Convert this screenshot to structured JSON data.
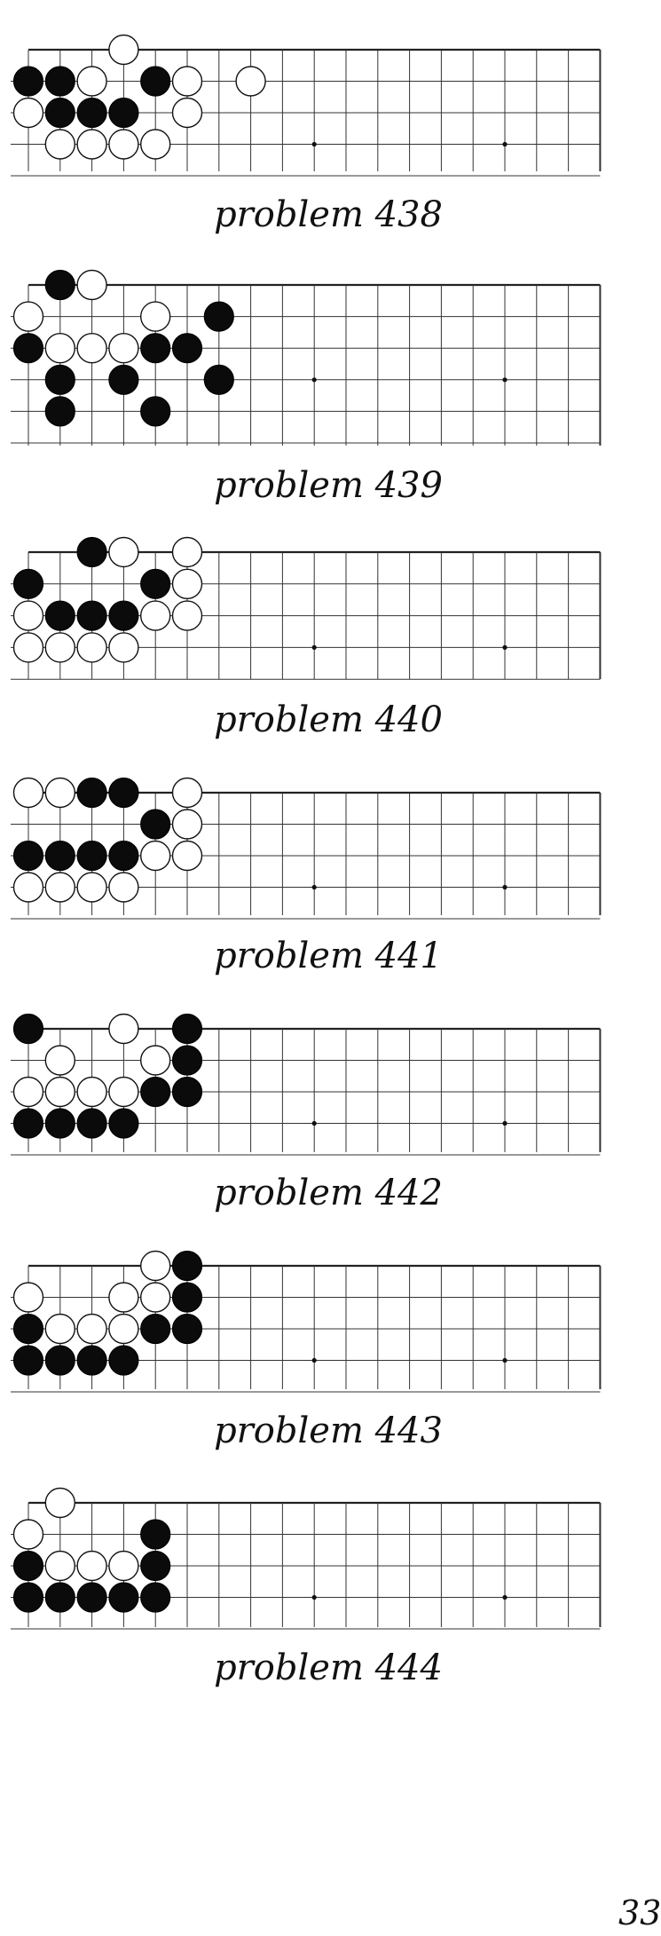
{
  "problems": [
    {
      "caption": "problem 438",
      "black": [
        [
          0,
          1
        ],
        [
          1,
          1
        ],
        [
          4,
          1
        ],
        [
          1,
          2
        ],
        [
          2,
          2
        ],
        [
          3,
          2
        ]
      ],
      "white": [
        [
          3,
          0
        ],
        [
          2,
          1
        ],
        [
          5,
          1
        ],
        [
          7,
          1
        ],
        [
          0,
          2
        ],
        [
          5,
          2
        ],
        [
          1,
          3
        ],
        [
          2,
          3
        ],
        [
          3,
          3
        ],
        [
          4,
          3
        ]
      ]
    },
    {
      "caption": "problem 439",
      "black": [
        [
          1,
          0
        ],
        [
          6,
          1
        ],
        [
          0,
          2
        ],
        [
          4,
          2
        ],
        [
          5,
          2
        ],
        [
          1,
          3
        ],
        [
          3,
          3
        ],
        [
          6,
          3
        ],
        [
          1,
          4
        ],
        [
          4,
          4
        ]
      ],
      "white": [
        [
          2,
          0
        ],
        [
          0,
          1
        ],
        [
          4,
          1
        ],
        [
          1,
          2
        ],
        [
          2,
          2
        ],
        [
          3,
          2
        ]
      ]
    },
    {
      "caption": "problem 440",
      "black": [
        [
          2,
          0
        ],
        [
          0,
          1
        ],
        [
          4,
          1
        ],
        [
          1,
          2
        ],
        [
          2,
          2
        ],
        [
          3,
          2
        ]
      ],
      "white": [
        [
          3,
          0
        ],
        [
          5,
          0
        ],
        [
          5,
          1
        ],
        [
          0,
          2
        ],
        [
          4,
          2
        ],
        [
          5,
          2
        ],
        [
          0,
          3
        ],
        [
          1,
          3
        ],
        [
          2,
          3
        ],
        [
          3,
          3
        ]
      ]
    },
    {
      "caption": "problem 441",
      "black": [
        [
          2,
          0
        ],
        [
          3,
          0
        ],
        [
          4,
          1
        ],
        [
          0,
          2
        ],
        [
          1,
          2
        ],
        [
          2,
          2
        ],
        [
          3,
          2
        ]
      ],
      "white": [
        [
          0,
          0
        ],
        [
          1,
          0
        ],
        [
          5,
          0
        ],
        [
          5,
          1
        ],
        [
          4,
          2
        ],
        [
          5,
          2
        ],
        [
          0,
          3
        ],
        [
          1,
          3
        ],
        [
          2,
          3
        ],
        [
          3,
          3
        ]
      ]
    },
    {
      "caption": "problem 442",
      "black": [
        [
          0,
          0
        ],
        [
          5,
          0
        ],
        [
          5,
          1
        ],
        [
          4,
          2
        ],
        [
          5,
          2
        ],
        [
          0,
          3
        ],
        [
          1,
          3
        ],
        [
          2,
          3
        ],
        [
          3,
          3
        ]
      ],
      "white": [
        [
          3,
          0
        ],
        [
          1,
          1
        ],
        [
          4,
          1
        ],
        [
          0,
          2
        ],
        [
          1,
          2
        ],
        [
          2,
          2
        ],
        [
          3,
          2
        ]
      ]
    },
    {
      "caption": "problem 443",
      "black": [
        [
          5,
          0
        ],
        [
          5,
          1
        ],
        [
          0,
          2
        ],
        [
          4,
          2
        ],
        [
          5,
          2
        ],
        [
          0,
          3
        ],
        [
          1,
          3
        ],
        [
          2,
          3
        ],
        [
          3,
          3
        ]
      ],
      "white": [
        [
          4,
          0
        ],
        [
          0,
          1
        ],
        [
          3,
          1
        ],
        [
          4,
          1
        ],
        [
          1,
          2
        ],
        [
          2,
          2
        ],
        [
          3,
          2
        ]
      ]
    },
    {
      "caption": "problem 444",
      "black": [
        [
          4,
          1
        ],
        [
          0,
          2
        ],
        [
          4,
          2
        ],
        [
          0,
          3
        ],
        [
          1,
          3
        ],
        [
          2,
          3
        ],
        [
          3,
          3
        ],
        [
          4,
          3
        ]
      ],
      "white": [
        [
          1,
          0
        ],
        [
          0,
          1
        ],
        [
          1,
          2
        ],
        [
          2,
          2
        ],
        [
          3,
          2
        ]
      ]
    }
  ],
  "page_number": "33"
}
